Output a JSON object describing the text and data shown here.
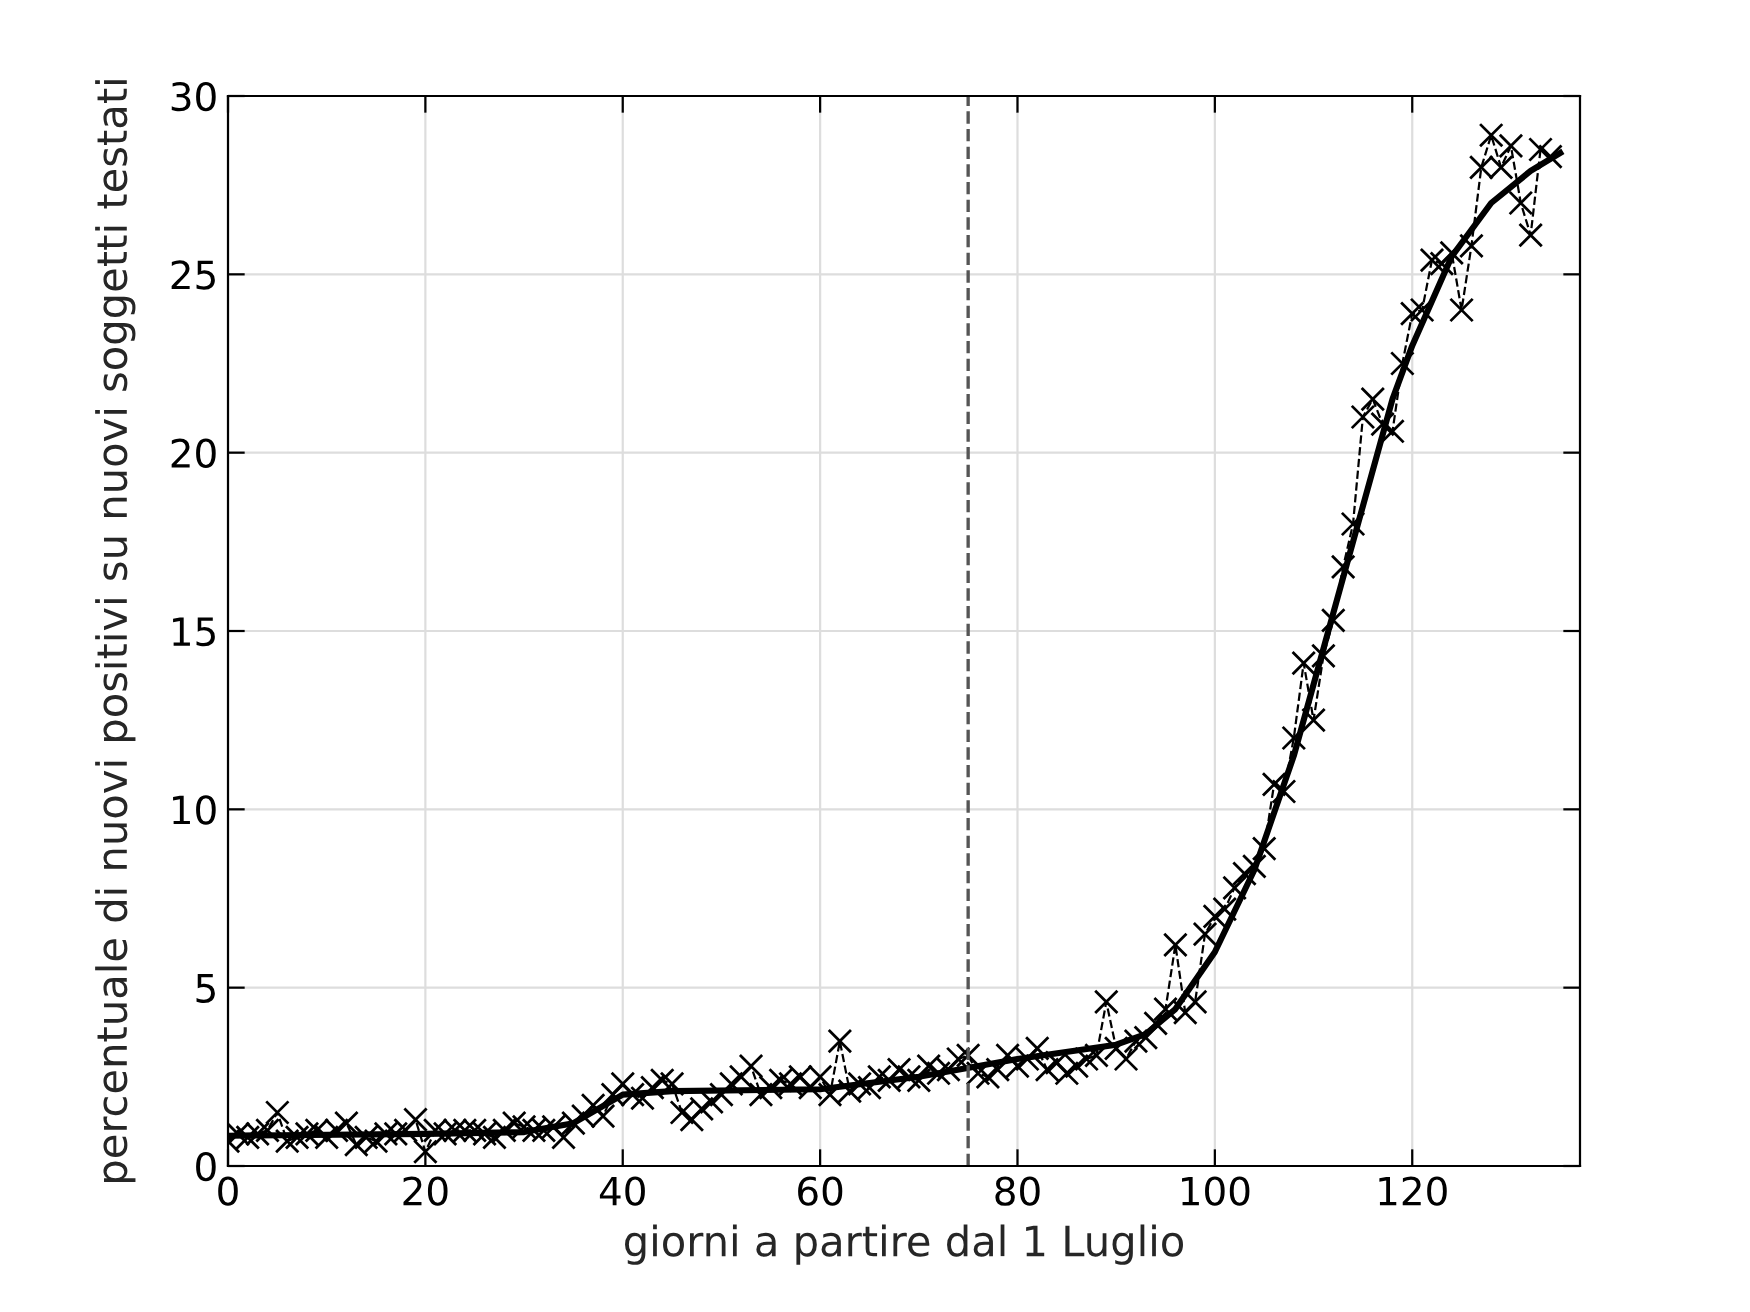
{
  "chart_data": {
    "type": "line",
    "xlabel": "giorni a partire dal 1 Luglio",
    "ylabel": "percentuale di nuovi positivi su nuovi soggetti testati",
    "series": [
      {
        "color": "#000000",
        "marker": "cross",
        "line_style": "dashed",
        "x": [
          0,
          1,
          2,
          3,
          4,
          5,
          6,
          7,
          8,
          9,
          10,
          11,
          12,
          13,
          14,
          15,
          16,
          17,
          18,
          19,
          20,
          21,
          22,
          23,
          24,
          25,
          26,
          27,
          28,
          29,
          30,
          31,
          32,
          33,
          34,
          35,
          36,
          37,
          38,
          39,
          40,
          41,
          42,
          43,
          44,
          45,
          46,
          47,
          48,
          49,
          50,
          51,
          52,
          53,
          54,
          55,
          56,
          57,
          58,
          59,
          60,
          61,
          62,
          63,
          64,
          65,
          66,
          67,
          68,
          69,
          70,
          71,
          72,
          73,
          74,
          75,
          76,
          77,
          78,
          79,
          80,
          81,
          82,
          83,
          84,
          85,
          86,
          87,
          88,
          89,
          90,
          91,
          92,
          93,
          94,
          95,
          96,
          97,
          98,
          99,
          100,
          101,
          102,
          103,
          104,
          105,
          106,
          107,
          108,
          109,
          110,
          111,
          112,
          113,
          114,
          115,
          116,
          117,
          118,
          119,
          120,
          121,
          122,
          123,
          124,
          125,
          126,
          127,
          128,
          129,
          130,
          131,
          132,
          133,
          134
        ],
        "values": [
          0.7,
          0.9,
          0.8,
          0.9,
          1.0,
          1.5,
          0.7,
          0.8,
          0.9,
          1.0,
          0.8,
          1.0,
          1.2,
          0.6,
          0.8,
          0.7,
          0.9,
          0.9,
          1.0,
          1.3,
          0.4,
          1.0,
          0.9,
          1.0,
          1.0,
          1.0,
          0.9,
          0.8,
          1.0,
          1.2,
          1.1,
          1.0,
          1.0,
          1.1,
          0.8,
          1.2,
          1.4,
          1.7,
          1.4,
          2.0,
          2.3,
          2.0,
          1.9,
          2.2,
          2.4,
          2.3,
          1.5,
          1.3,
          1.6,
          1.8,
          2.0,
          2.3,
          2.5,
          2.8,
          2.0,
          2.2,
          2.4,
          2.3,
          2.5,
          2.2,
          2.5,
          2.0,
          3.5,
          2.1,
          2.3,
          2.2,
          2.5,
          2.4,
          2.7,
          2.5,
          2.4,
          2.8,
          2.6,
          2.7,
          3.0,
          3.1,
          2.6,
          2.5,
          2.7,
          3.1,
          2.8,
          3.0,
          3.3,
          2.7,
          2.9,
          2.6,
          2.8,
          3.0,
          3.1,
          4.6,
          3.3,
          3.0,
          3.5,
          3.6,
          4.0,
          4.4,
          6.2,
          4.3,
          4.6,
          6.5,
          7.0,
          7.2,
          7.8,
          8.2,
          8.4,
          8.9,
          10.7,
          10.5,
          12.0,
          14.1,
          12.5,
          14.3,
          15.3,
          16.8,
          18.0,
          21.0,
          21.5,
          20.8,
          20.6,
          22.5,
          23.9,
          24.0,
          25.4,
          25.3,
          25.6,
          24.0,
          25.8,
          28.0,
          28.9,
          28.0,
          28.6,
          27.0,
          26.1,
          28.5,
          28.3
        ]
      },
      {
        "color": "#000000",
        "marker": "none",
        "line_style": "solid",
        "x": [
          0,
          20,
          30,
          35,
          40,
          45,
          60,
          70,
          80,
          90,
          93,
          96,
          100,
          104,
          108,
          112,
          115,
          118,
          120,
          124,
          128,
          132,
          135
        ],
        "values": [
          0.85,
          0.9,
          0.95,
          1.2,
          2.0,
          2.1,
          2.15,
          2.5,
          3.0,
          3.4,
          3.7,
          4.4,
          6.0,
          8.3,
          11.5,
          15.5,
          18.5,
          21.5,
          23.0,
          25.5,
          27.0,
          27.9,
          28.4
        ]
      }
    ],
    "ref_lines": [
      {
        "axis": "x",
        "value": 75,
        "color": "#555555",
        "line_style": "dashed"
      }
    ],
    "xlim": [
      0,
      137
    ],
    "ylim": [
      0,
      30
    ],
    "xticks": [
      0,
      20,
      40,
      60,
      80,
      100,
      120
    ],
    "yticks": [
      0,
      5,
      10,
      15,
      20,
      25,
      30
    ],
    "grid": true
  }
}
